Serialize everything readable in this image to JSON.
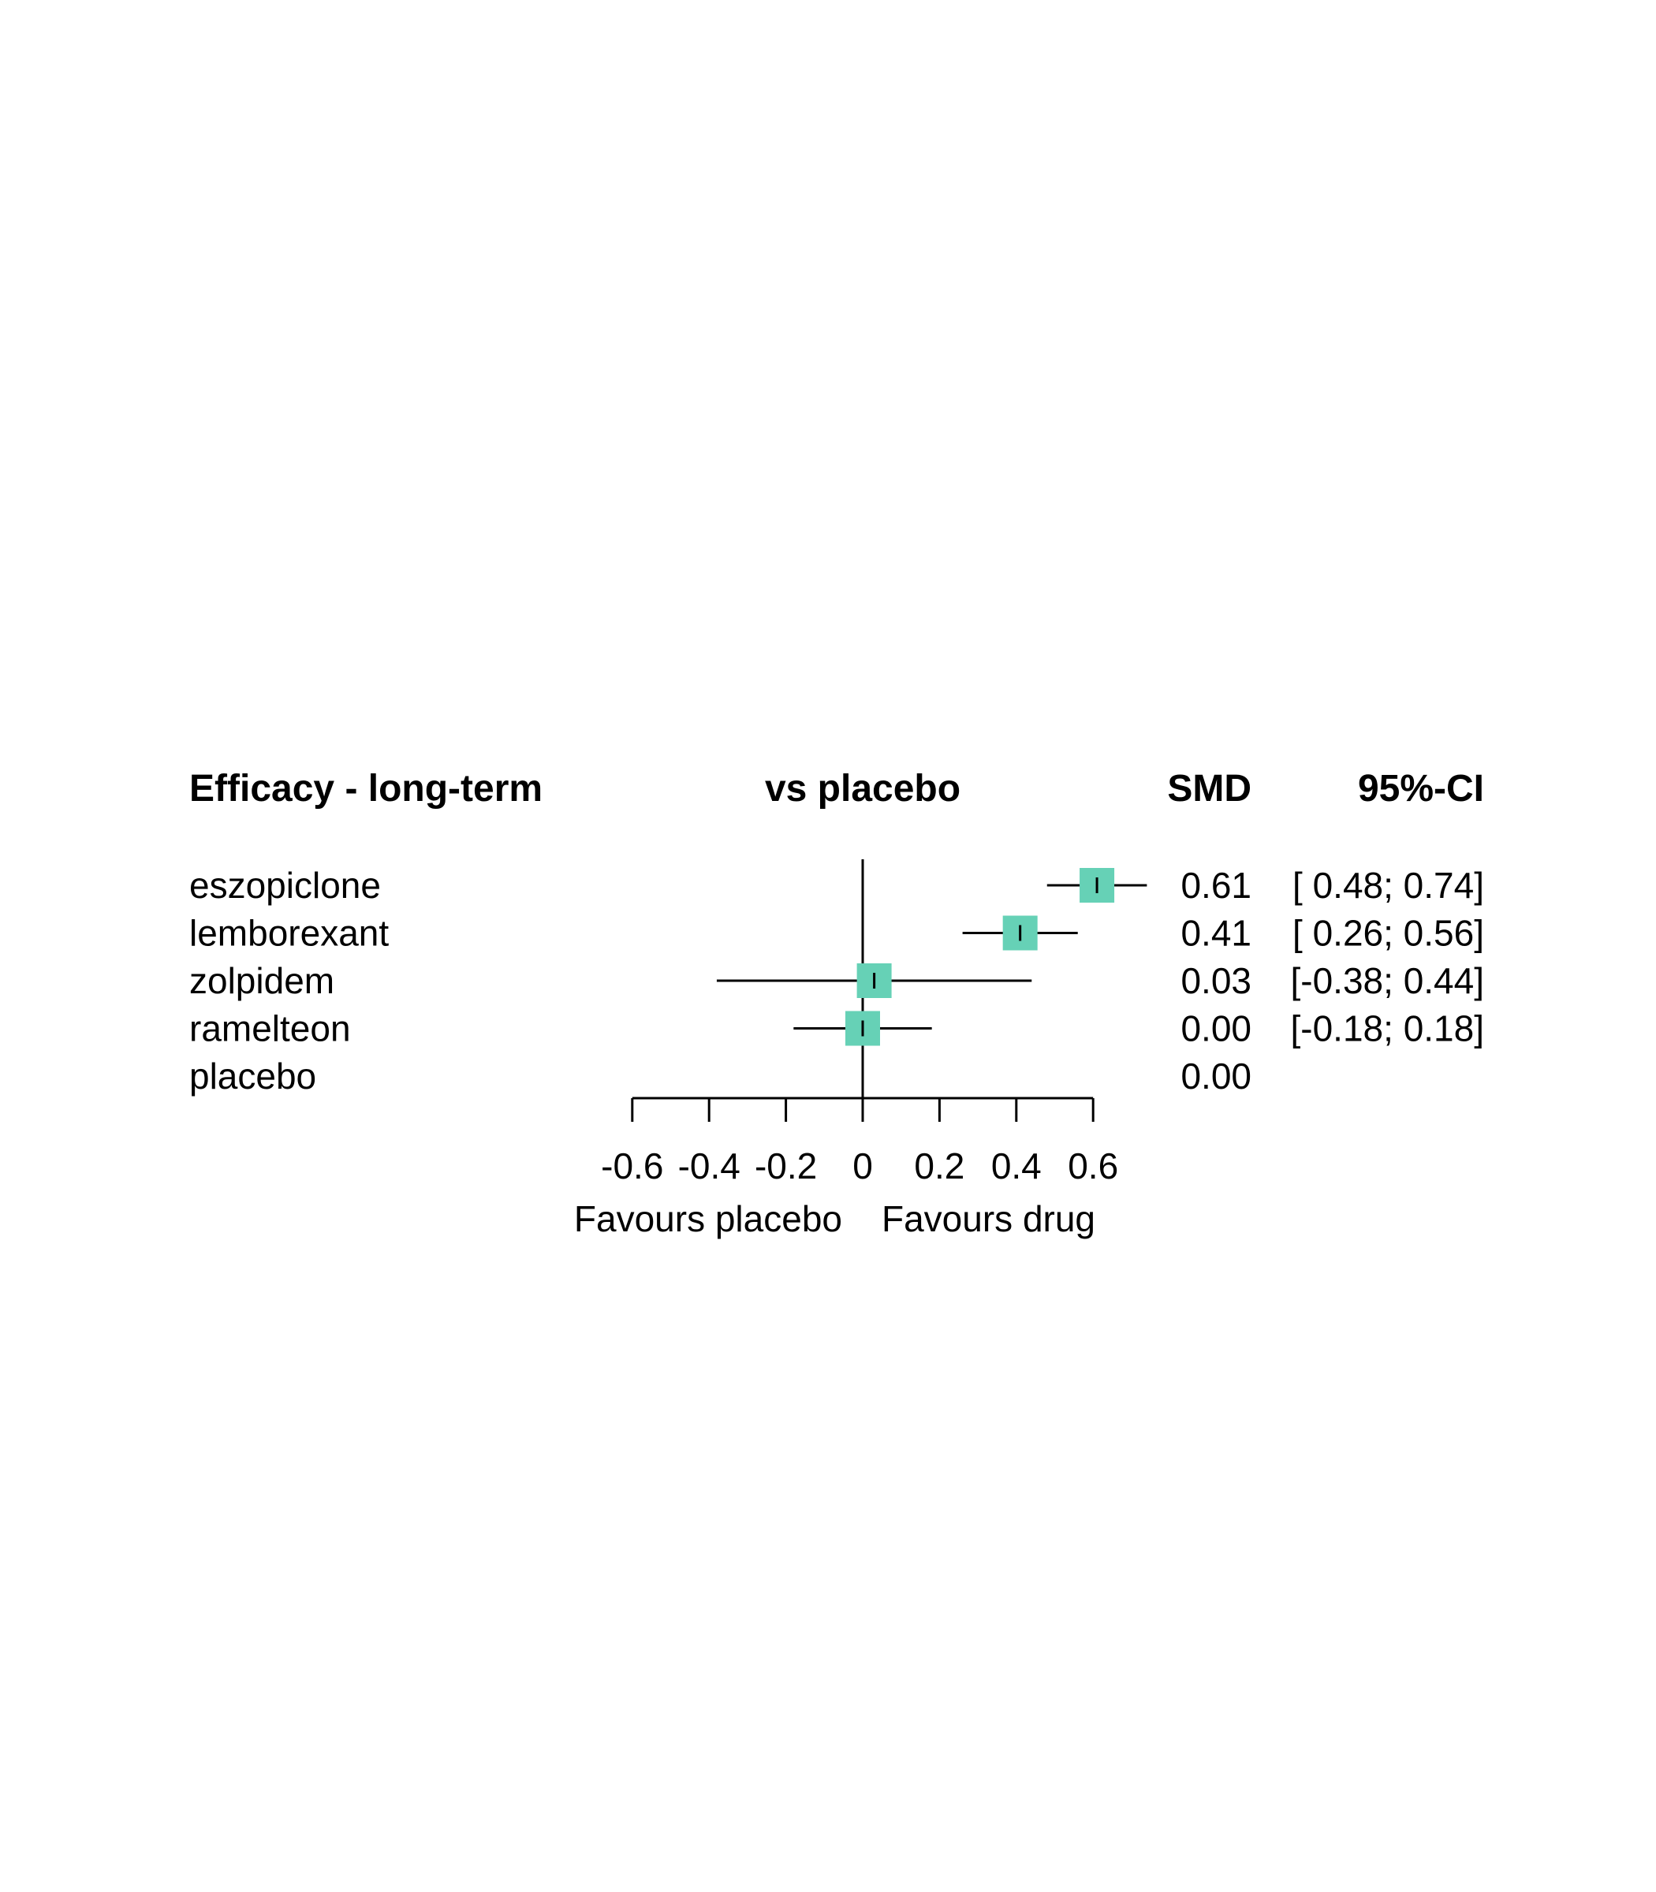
{
  "chart_data": {
    "type": "forest",
    "title": "",
    "headers": {
      "label": "Efficacy - long-term",
      "comparison": "vs placebo",
      "estimate": "SMD",
      "ci": "95%-CI"
    },
    "xlabel_left": "Favours placebo",
    "xlabel_right": "Favours drug",
    "xlim": [
      -0.6,
      0.6
    ],
    "xticks": [
      -0.6,
      -0.4,
      -0.2,
      0,
      0.2,
      0.4,
      0.6
    ],
    "xtick_labels": [
      "-0.6",
      "-0.4",
      "-0.2",
      "0",
      "0.2",
      "0.4",
      "0.6"
    ],
    "reference_line": 0,
    "marker_color": "#66d1b6",
    "rows": [
      {
        "name": "eszopiclone",
        "smd": 0.61,
        "lower": 0.48,
        "upper": 0.74,
        "smd_text": "0.61",
        "ci_text": "[ 0.48; 0.74]"
      },
      {
        "name": "lemborexant",
        "smd": 0.41,
        "lower": 0.26,
        "upper": 0.56,
        "smd_text": "0.41",
        "ci_text": "[ 0.26; 0.56]"
      },
      {
        "name": "zolpidem",
        "smd": 0.03,
        "lower": -0.38,
        "upper": 0.44,
        "smd_text": "0.03",
        "ci_text": "[-0.38; 0.44]"
      },
      {
        "name": "ramelteon",
        "smd": 0.0,
        "lower": -0.18,
        "upper": 0.18,
        "smd_text": "0.00",
        "ci_text": "[-0.18; 0.18]"
      },
      {
        "name": "placebo",
        "smd": null,
        "lower": null,
        "upper": null,
        "smd_text": "0.00",
        "ci_text": ""
      }
    ]
  }
}
